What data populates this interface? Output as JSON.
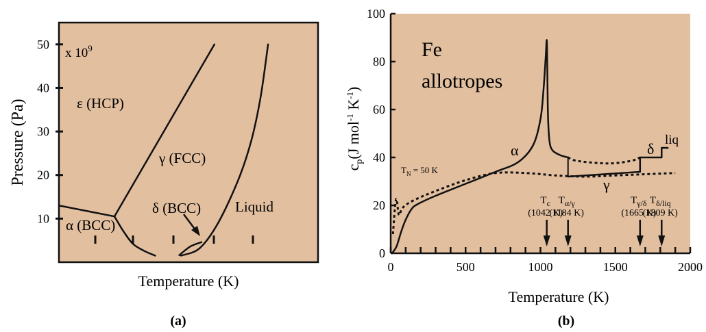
{
  "colors": {
    "plot_background": "#e2bf9f",
    "frame": "#111111",
    "curve": "#111111"
  },
  "chart_data": [
    {
      "type": "line",
      "panel_label": "(a)",
      "xlabel": "Temperature (K)",
      "ylabel": "Pressure (Pa)",
      "y_multiplier": "x 10",
      "y_multiplier_exp": "9",
      "ylim": [
        0,
        55
      ],
      "y_ticks": [
        10,
        20,
        30,
        40,
        50
      ],
      "y_tick_labels": [
        "10",
        "20",
        "30",
        "40",
        "50"
      ],
      "grid": false,
      "series": [
        {
          "values": [
            [
              0,
              13
            ],
            [
              1.5,
              10.5
            ]
          ]
        },
        {
          "values": [
            [
              1.5,
              10.5
            ],
            [
              4.2,
              50
            ]
          ]
        },
        {
          "values": [
            [
              1.5,
              10.5
            ],
            [
              1.75,
              7
            ],
            [
              2.0,
              4.2
            ],
            [
              2.3,
              2.6
            ],
            [
              2.6,
              1.5
            ]
          ]
        },
        {
          "values": [
            [
              3.3,
              1.5
            ],
            [
              3.8,
              3.2
            ],
            [
              4.3,
              9
            ],
            [
              4.85,
              19
            ],
            [
              5.2,
              28
            ],
            [
              5.45,
              38
            ],
            [
              5.65,
              50
            ]
          ]
        },
        {
          "values": [
            [
              3.25,
              1.6
            ],
            [
              3.55,
              3.6
            ],
            [
              3.85,
              4.6
            ]
          ]
        }
      ],
      "annotations": [
        {
          "text": "ε (HCP)"
        },
        {
          "text": "γ (FCC)"
        },
        {
          "text": "α (BCC)"
        },
        {
          "text": "δ (BCC)"
        },
        {
          "text": "Liquid"
        }
      ]
    },
    {
      "type": "line",
      "panel_label": "(b)",
      "title": "Fe allotropes",
      "title_lines": [
        "Fe",
        "allotropes"
      ],
      "xlabel": "Temperature (K)",
      "ylabel": "c_p (J mol^-1 K^-1)",
      "xlim": [
        0,
        2000
      ],
      "ylim": [
        0,
        100
      ],
      "x_ticks": [
        0,
        500,
        1000,
        1500,
        2000
      ],
      "x_tick_labels": [
        "0",
        "500",
        "1000",
        "1500",
        "2000"
      ],
      "y_ticks": [
        0,
        20,
        40,
        60,
        80,
        100
      ],
      "y_tick_labels": [
        "0",
        "20",
        "40",
        "60",
        "80",
        "100"
      ],
      "grid": false,
      "series": [
        {
          "style": "solid",
          "values": [
            [
              5,
              0
            ],
            [
              15,
              0.5
            ],
            [
              40,
              3
            ],
            [
              70,
              9
            ],
            [
              100,
              14
            ],
            [
              140,
              18.5
            ],
            [
              180,
              20.5
            ],
            [
              300,
              24
            ],
            [
              500,
              29
            ],
            [
              700,
              34
            ],
            [
              850,
              38
            ],
            [
              950,
              45
            ],
            [
              1000,
              56
            ],
            [
              1020,
              68
            ],
            [
              1035,
              82
            ],
            [
              1042,
              89
            ],
            [
              1045,
              80
            ],
            [
              1050,
              58
            ],
            [
              1060,
              47
            ],
            [
              1080,
              43
            ],
            [
              1130,
              41
            ],
            [
              1184,
              40
            ]
          ]
        },
        {
          "style": "solid",
          "values": [
            [
              1184,
              32
            ],
            [
              1665,
              34
            ]
          ]
        },
        {
          "style": "solid",
          "values": [
            [
              1665,
              34
            ],
            [
              1665,
              40
            ],
            [
              1809,
              40
            ],
            [
              1809,
              44
            ],
            [
              1850,
              44
            ]
          ]
        },
        {
          "style": "dotted",
          "values": [
            [
              15,
              8
            ],
            [
              30,
              20
            ],
            [
              40,
              22.5
            ],
            [
              55,
              16
            ],
            [
              80,
              19
            ],
            [
              150,
              22
            ],
            [
              300,
              26
            ],
            [
              500,
              30.5
            ],
            [
              700,
              33.5
            ],
            [
              900,
              33.5
            ],
            [
              1100,
              32.5
            ],
            [
              1300,
              32
            ],
            [
              1500,
              32.5
            ],
            [
              1700,
              33
            ],
            [
              1900,
              33.5
            ]
          ]
        },
        {
          "style": "dotted",
          "values": [
            [
              1184,
              40
            ],
            [
              1250,
              38.5
            ],
            [
              1450,
              37.5
            ],
            [
              1600,
              38.5
            ],
            [
              1665,
              40
            ]
          ]
        }
      ],
      "annotations": [
        {
          "text": "α"
        },
        {
          "text": "γ"
        },
        {
          "text": "δ"
        },
        {
          "text": "liq"
        }
      ],
      "tn_label": {
        "base": "T",
        "sub": "N",
        "rest": " = 50 K"
      },
      "transitions": [
        {
          "x": 1042,
          "symbol": "T",
          "sub": "c",
          "value_label": "(1042 K)"
        },
        {
          "x": 1184,
          "symbol": "T",
          "sub": "α/γ",
          "value_label": "(1184 K)"
        },
        {
          "x": 1665,
          "symbol": "T",
          "sub": "γ/δ",
          "value_label": "(1665 K)"
        },
        {
          "x": 1809,
          "symbol": "T",
          "sub": "δ/liq",
          "value_label": "(1809 K)"
        }
      ]
    }
  ]
}
